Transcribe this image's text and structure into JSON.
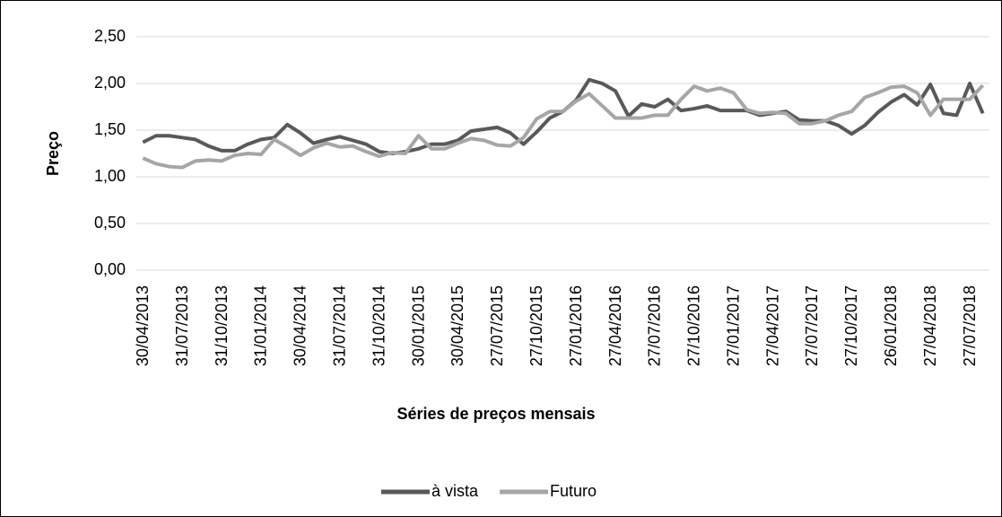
{
  "chart_data": {
    "type": "line",
    "y_label": "Preço",
    "x_label": "Séries de preços mensais",
    "categories": [
      "30/04/2013",
      null,
      null,
      "31/07/2013",
      null,
      null,
      "31/10/2013",
      null,
      null,
      "31/01/2014",
      null,
      null,
      "30/04/2014",
      null,
      null,
      "31/07/2014",
      null,
      null,
      "31/10/2014",
      null,
      null,
      "30/01/2015",
      null,
      null,
      "30/04/2015",
      null,
      null,
      "27/07/2015",
      null,
      null,
      "27/10/2015",
      null,
      null,
      "27/01/2016",
      null,
      null,
      "27/04/2016",
      null,
      null,
      "27/07/2016",
      null,
      null,
      "27/10/2016",
      null,
      null,
      "27/01/2017",
      null,
      null,
      "27/04/2017",
      null,
      null,
      "27/07/2017",
      null,
      null,
      "27/10/2017",
      null,
      null,
      "26/01/2018",
      null,
      null,
      "27/04/2018",
      null,
      null,
      "27/07/2018",
      null
    ],
    "series": [
      {
        "name": "à vista",
        "color": "#595959",
        "values": [
          1.37,
          1.44,
          1.44,
          1.42,
          1.4,
          1.33,
          1.28,
          1.28,
          1.35,
          1.4,
          1.42,
          1.56,
          1.47,
          1.36,
          1.4,
          1.43,
          1.39,
          1.35,
          1.27,
          1.25,
          1.27,
          1.3,
          1.35,
          1.35,
          1.39,
          1.49,
          1.51,
          1.53,
          1.47,
          1.35,
          1.48,
          1.63,
          1.7,
          1.82,
          2.04,
          2.0,
          1.92,
          1.65,
          1.78,
          1.75,
          1.83,
          1.71,
          1.73,
          1.76,
          1.71,
          1.71,
          1.71,
          1.66,
          1.68,
          1.7,
          1.61,
          1.6,
          1.6,
          1.55,
          1.46,
          1.55,
          1.69,
          1.8,
          1.88,
          1.77,
          1.99,
          1.68,
          1.66,
          2.0,
          1.68
        ]
      },
      {
        "name": "Futuro",
        "color": "#a6a6a6",
        "values": [
          1.2,
          1.14,
          1.11,
          1.1,
          1.17,
          1.18,
          1.17,
          1.23,
          1.25,
          1.24,
          1.4,
          1.32,
          1.23,
          1.31,
          1.36,
          1.32,
          1.33,
          1.27,
          1.22,
          1.26,
          1.25,
          1.44,
          1.3,
          1.3,
          1.36,
          1.41,
          1.39,
          1.34,
          1.33,
          1.42,
          1.62,
          1.7,
          1.7,
          1.81,
          1.89,
          1.76,
          1.63,
          1.63,
          1.63,
          1.66,
          1.66,
          1.83,
          1.97,
          1.92,
          1.95,
          1.9,
          1.72,
          1.68,
          1.69,
          1.68,
          1.57,
          1.57,
          1.6,
          1.66,
          1.7,
          1.85,
          1.9,
          1.96,
          1.97,
          1.9,
          1.66,
          1.83,
          1.83,
          1.83,
          1.98
        ]
      }
    ],
    "ylim": [
      0,
      2.5
    ],
    "yticks": [
      {
        "value": 0,
        "label": "0,00"
      },
      {
        "value": 0.5,
        "label": "0,50"
      },
      {
        "value": 1,
        "label": "1,00"
      },
      {
        "value": 1.5,
        "label": "1,50"
      },
      {
        "value": 2,
        "label": "2,00"
      },
      {
        "value": 2.5,
        "label": "2,50"
      }
    ],
    "grid": true,
    "legend": "bottom"
  }
}
